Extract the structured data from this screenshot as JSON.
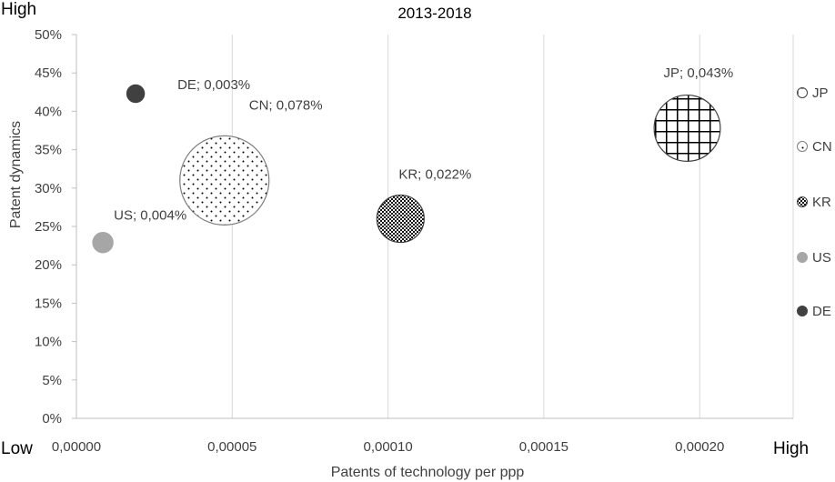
{
  "chart_data": {
    "type": "bubble",
    "title": "2013-2018",
    "xlabel": "Patents of technology per ppp",
    "ylabel": "Patent dynamics",
    "corner_labels": {
      "y_high": "High",
      "x_low": "Low",
      "x_high": "High"
    },
    "xlim": [
      0,
      0.00023
    ],
    "ylim": [
      0,
      0.5
    ],
    "x_ticks": [
      0,
      5e-05,
      0.0001,
      0.00015,
      0.0002
    ],
    "x_tick_labels": [
      "0,00000",
      "0,00005",
      "0,00010",
      "0,00015",
      "0,00020"
    ],
    "y_ticks": [
      0,
      0.05,
      0.1,
      0.15,
      0.2,
      0.25,
      0.3,
      0.35,
      0.4,
      0.45,
      0.5
    ],
    "y_tick_labels": [
      "0%",
      "5%",
      "10%",
      "15%",
      "20%",
      "25%",
      "30%",
      "35%",
      "40%",
      "45%",
      "50%"
    ],
    "grid": {
      "vertical": true,
      "horizontal": false
    },
    "legend_position": "right",
    "series": [
      {
        "name": "JP",
        "x": 0.000196,
        "y": 0.378,
        "size": 0.043,
        "label": "JP; 0,043%",
        "pattern": "grid",
        "color": "#000000"
      },
      {
        "name": "CN",
        "x": 4.75e-05,
        "y": 0.31,
        "size": 0.078,
        "label": "CN; 0,078%",
        "pattern": "dots",
        "color": "#000000"
      },
      {
        "name": "KR",
        "x": 0.000104,
        "y": 0.26,
        "size": 0.022,
        "label": "KR; 0,022%",
        "pattern": "checker",
        "color": "#000000"
      },
      {
        "name": "US",
        "x": 8.5e-06,
        "y": 0.229,
        "size": 0.004,
        "label": "US; 0,004%",
        "pattern": "solid",
        "color": "#a6a6a6"
      },
      {
        "name": "DE",
        "x": 1.9e-05,
        "y": 0.423,
        "size": 0.003,
        "label": "DE; 0,003%",
        "pattern": "solid",
        "color": "#404040"
      }
    ]
  }
}
